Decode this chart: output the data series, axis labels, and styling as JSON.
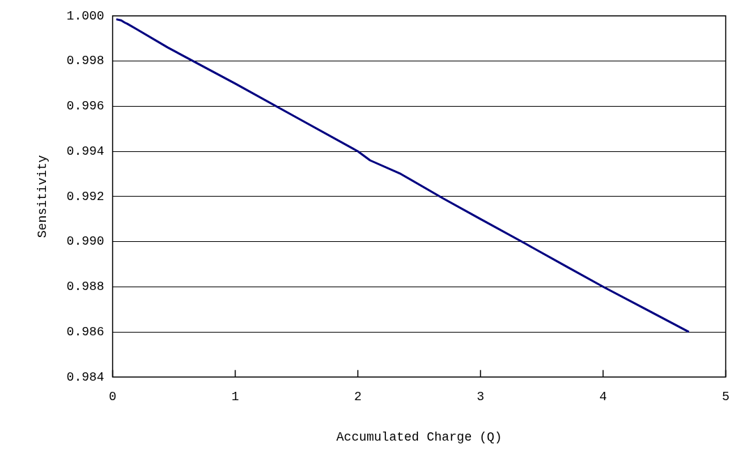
{
  "chart_data": {
    "type": "line",
    "xlabel": "Accumulated Charge (Q)",
    "ylabel": "Sensitivity",
    "x": [
      0.03,
      0.07,
      0.1,
      0.12,
      0.2,
      0.45,
      1.0,
      1.5,
      2.0,
      2.1,
      2.35,
      2.7,
      3.0,
      3.37,
      3.7,
      4.0,
      4.35,
      4.7
    ],
    "series": [
      {
        "color": "#000080",
        "values": [
          0.99985,
          0.9998,
          0.9997,
          0.99965,
          0.9994,
          0.9986,
          0.997,
          0.9955,
          0.994,
          0.9936,
          0.993,
          0.9919,
          0.991,
          0.9899,
          0.9889,
          0.988,
          0.987,
          0.986
        ]
      }
    ],
    "xlim": [
      0,
      5
    ],
    "xticks": [
      0,
      1,
      2,
      3,
      4,
      5
    ],
    "ylim": [
      0.984,
      1.0
    ],
    "yticks": [
      {
        "value": 0.984,
        "label": "0.984"
      },
      {
        "value": 0.986,
        "label": "0.986"
      },
      {
        "value": 0.988,
        "label": "0.988"
      },
      {
        "value": 0.99,
        "label": "0.990"
      },
      {
        "value": 0.992,
        "label": "0.992"
      },
      {
        "value": 0.994,
        "label": "0.994"
      },
      {
        "value": 0.996,
        "label": "0.996"
      },
      {
        "value": 0.998,
        "label": "0.998"
      },
      {
        "value": 1.0,
        "label": "1.000"
      }
    ],
    "grid": "y",
    "legend": false,
    "marker": "none",
    "line_style": "solid"
  }
}
